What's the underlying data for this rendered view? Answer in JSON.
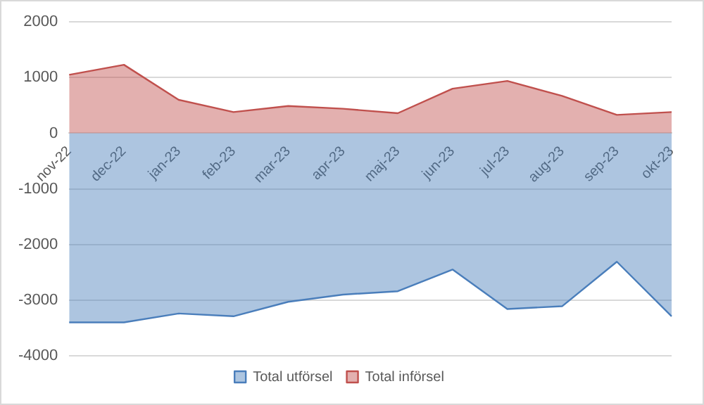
{
  "chart_data": {
    "type": "area",
    "categories": [
      "nov-22",
      "dec-22",
      "jan-23",
      "feb-23",
      "mar-23",
      "apr-23",
      "maj-23",
      "jun-23",
      "jul-23",
      "aug-23",
      "sep-23",
      "okt-23"
    ],
    "series": [
      {
        "name": "Total utförsel",
        "color": "#4a7ebb",
        "values": [
          -3400,
          -3400,
          -3240,
          -3290,
          -3030,
          -2900,
          -2840,
          -2450,
          -3160,
          -3110,
          -2310,
          -3290
        ]
      },
      {
        "name": "Total införsel",
        "color": "#c0504d",
        "values": [
          1050,
          1230,
          600,
          380,
          490,
          440,
          360,
          800,
          940,
          670,
          330,
          380
        ]
      }
    ],
    "ylim": [
      -4000,
      2000
    ],
    "yticks": [
      -4000,
      -3000,
      -2000,
      -1000,
      0,
      1000,
      2000
    ],
    "grid": "y",
    "legend": "bottom"
  }
}
